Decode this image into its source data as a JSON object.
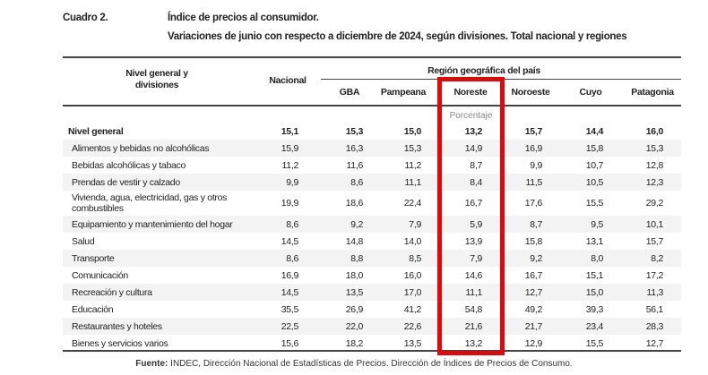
{
  "title": {
    "label": "Cuadro 2.",
    "line1": "Índice de precios al consumidor.",
    "line2": "Variaciones de junio con respecto a diciembre de 2024, según divisiones. Total nacional y regiones"
  },
  "header": {
    "divisions": "Nivel general y divisiones",
    "nacional": "Nacional",
    "region_group": "Región geográfica del país",
    "regions": [
      "GBA",
      "Pampeana",
      "Noreste",
      "Noroeste",
      "Cuyo",
      "Patagonia"
    ],
    "unit": "Porcentaje"
  },
  "rows": [
    {
      "label": "Nivel general",
      "values": [
        "15,1",
        "15,3",
        "15,0",
        "13,2",
        "15,7",
        "14,4",
        "16,0"
      ]
    },
    {
      "label": "Alimentos y bebidas no alcohólicas",
      "values": [
        "15,9",
        "16,3",
        "15,3",
        "14,9",
        "16,9",
        "15,8",
        "15,3"
      ]
    },
    {
      "label": "Bebidas alcohólicas y tabaco",
      "values": [
        "11,2",
        "11,6",
        "11,2",
        "8,7",
        "9,9",
        "10,7",
        "12,8"
      ]
    },
    {
      "label": "Prendas de vestir y calzado",
      "values": [
        "9,9",
        "8,6",
        "11,1",
        "8,4",
        "11,5",
        "10,5",
        "12,3"
      ]
    },
    {
      "label": "Vivienda, agua, electricidad, gas y otros combustibles",
      "values": [
        "19,9",
        "18,6",
        "22,4",
        "16,7",
        "17,6",
        "15,5",
        "29,2"
      ]
    },
    {
      "label": "Equipamiento y mantenimiento del hogar",
      "values": [
        "8,6",
        "9,2",
        "7,9",
        "5,9",
        "8,7",
        "9,5",
        "10,1"
      ]
    },
    {
      "label": "Salud",
      "values": [
        "14,5",
        "14,8",
        "14,0",
        "13,9",
        "15,8",
        "13,1",
        "15,7"
      ]
    },
    {
      "label": "Transporte",
      "values": [
        "8,6",
        "8,8",
        "8,5",
        "7,9",
        "9,2",
        "8,0",
        "8,2"
      ]
    },
    {
      "label": "Comunicación",
      "values": [
        "16,9",
        "18,0",
        "16,0",
        "14,6",
        "16,7",
        "15,1",
        "17,2"
      ]
    },
    {
      "label": "Recreación y cultura",
      "values": [
        "14,5",
        "13,5",
        "17,0",
        "11,1",
        "12,7",
        "15,0",
        "11,3"
      ]
    },
    {
      "label": "Educación",
      "values": [
        "35,5",
        "26,9",
        "41,2",
        "54,8",
        "49,2",
        "39,3",
        "56,1"
      ]
    },
    {
      "label": "Restaurantes y hoteles",
      "values": [
        "22,5",
        "22,0",
        "22,6",
        "21,6",
        "21,7",
        "23,4",
        "28,3"
      ]
    },
    {
      "label": "Bienes y servicios varios",
      "values": [
        "15,6",
        "18,2",
        "13,5",
        "13,2",
        "12,9",
        "15,5",
        "12,7"
      ]
    }
  ],
  "source": {
    "label": "Fuente:",
    "text": " INDEC, Dirección Nacional de Estadísticas de Precios. Dirección de Índices de Precios de Consumo."
  },
  "highlight_color": "#e0080b"
}
